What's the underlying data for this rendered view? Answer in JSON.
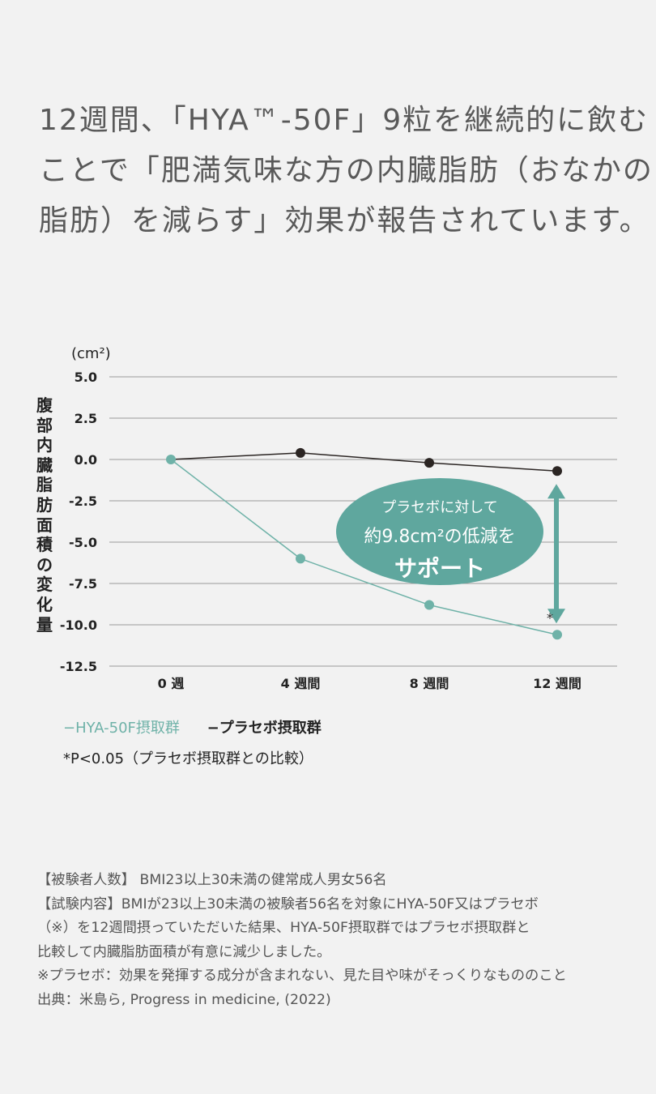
{
  "intro": {
    "lines": [
      "12週間、「HYA™-50F」9粒を継続的に飲む",
      "ことで「肥満気味な方の内臓脂肪（おなかの",
      "脂肪）を減らす」効果が報告されています。"
    ]
  },
  "chart_data": {
    "type": "line",
    "unit": "(cm²)",
    "ylabel": "腹部内臓脂肪面積の変化量",
    "categories": [
      "0 週",
      "4 週間",
      "8 週間",
      "12 週間"
    ],
    "ylim": [
      -12.5,
      5.0
    ],
    "yticks": [
      "5.0",
      "2.5",
      "0.0",
      "-2.5",
      "-5.0",
      "-7.5",
      "-10.0",
      "-12.5"
    ],
    "grid": true,
    "series": [
      {
        "name": "HYA-50F摂取群",
        "color": "#6fb2a8",
        "values": [
          0.0,
          -6.0,
          -8.8,
          -10.6
        ]
      },
      {
        "name": "プラセボ摂取群",
        "color": "#2b2523",
        "values": [
          null,
          0.4,
          -0.2,
          -0.7
        ]
      }
    ],
    "annotation": {
      "lines": [
        "プラセボに対して",
        "約9.8cm²の低減を",
        "サポート"
      ],
      "asterisk": "*",
      "color": "#5fa79e"
    },
    "legend": {
      "hya": "−HYA-50F摂取群",
      "placebo": "−プラセボ摂取群",
      "position": "bottom-left"
    },
    "significance_note": "*P<0.05（プラセボ摂取群との比較）"
  },
  "notes": [
    "【被験者人数】 BMI23以上30未満の健常成人男女56名",
    "【試験内容】BMIが23以上30未満の被験者56名を対象にHYA-50F又はプラセボ",
    "（※）を12週間摂っていただいた結果、HYA-50F摂取群ではプラセボ摂取群と",
    "比較して内臓脂肪面積が有意に減少しました。",
    "※プラセボ：効果を発揮する成分が含まれない、見た目や味がそっくりなもののこと",
    "出典：米島ら, Progress in medicine, (2022)"
  ]
}
